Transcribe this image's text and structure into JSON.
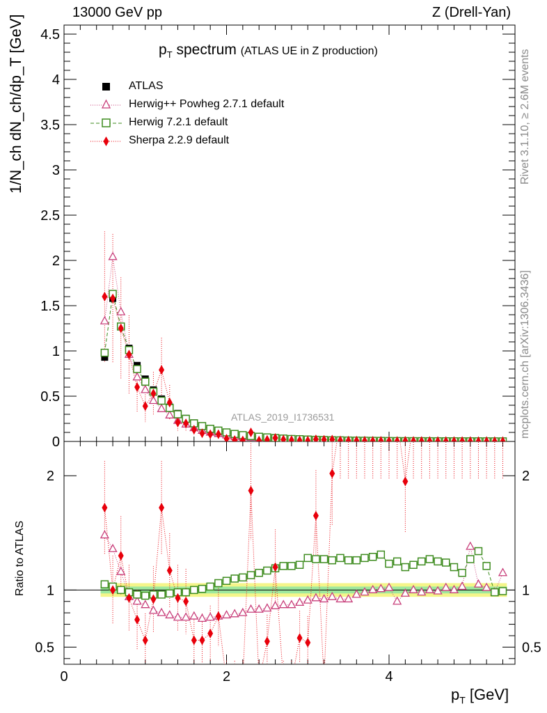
{
  "header": {
    "left": "13000 GeV pp",
    "right": "Z (Drell-Yan)"
  },
  "side": {
    "rivet": "Rivet 3.1.10, ≥ 2.6M events",
    "mcplots": "mcplots.cern.ch [arXiv:1306.3436]"
  },
  "watermark": "ATLAS_2019_I1736531",
  "chart_data": {
    "type": "scatter",
    "title_main": "p",
    "title_sub": "T",
    "title_rest": " spectrum",
    "title_note": "(ATLAS UE in Z production)",
    "xlabel": "p",
    "xlabel_sub": "T",
    "xlabel_unit": " [GeV]",
    "ylabel": "1/N_ch dN_ch/dp_T [GeV]",
    "ylabel_ratio": "Ratio to ATLAS",
    "xlim": [
      0,
      5.55
    ],
    "ylim": [
      0,
      4.6
    ],
    "ylim_ratio": [
      0.35,
      2.3
    ],
    "x_ticks": [
      "0",
      "2",
      "4"
    ],
    "y_ticks": [
      "0",
      "0.5",
      "1",
      "1.5",
      "2",
      "2.5",
      "3",
      "3.5",
      "4",
      "4.5"
    ],
    "ratio_ticks": [
      "0.5",
      "1",
      "2"
    ],
    "legend": [
      {
        "name": "ATLAS",
        "color": "#000000",
        "marker": "square"
      },
      {
        "name": "Herwig++ Powheg 2.7.1 default",
        "color": "#c83e7a",
        "marker": "triangle"
      },
      {
        "name": "Herwig 7.2.1 default",
        "color": "#3d8b1e",
        "marker": "open-square"
      },
      {
        "name": "Sherpa 2.2.9 default",
        "color": "#e8000b",
        "marker": "diamond"
      }
    ],
    "x": [
      0.5,
      0.6,
      0.7,
      0.8,
      0.9,
      1.0,
      1.1,
      1.2,
      1.3,
      1.4,
      1.5,
      1.6,
      1.7,
      1.8,
      1.9,
      2.0,
      2.1,
      2.2,
      2.3,
      2.4,
      2.5,
      2.6,
      2.7,
      2.8,
      2.9,
      3.0,
      3.1,
      3.2,
      3.3,
      3.4,
      3.5,
      3.6,
      3.7,
      3.8,
      3.9,
      4.0,
      4.1,
      4.2,
      4.3,
      4.4,
      4.5,
      4.6,
      4.7,
      4.8,
      4.9,
      5.0,
      5.1,
      5.2,
      5.3,
      5.4
    ],
    "series": [
      {
        "name": "ATLAS",
        "values": [
          0.93,
          1.58,
          1.27,
          1.03,
          0.84,
          0.69,
          0.57,
          0.47,
          0.38,
          0.31,
          0.255,
          0.205,
          0.165,
          0.135,
          0.11,
          0.09,
          0.075,
          0.062,
          0.052,
          0.044,
          0.037,
          0.031,
          0.026,
          0.022,
          0.019,
          0.016,
          0.014,
          0.012,
          0.01,
          0.009,
          0.008,
          0.007,
          0.006,
          0.0052,
          0.0045,
          0.004,
          0.0035,
          0.003,
          0.0027,
          0.0024,
          0.0021,
          0.0019,
          0.0017,
          0.0015,
          0.0013,
          0.0012,
          0.0011,
          0.001,
          0.0009,
          0.0008
        ]
      },
      {
        "name": "Herwig++ Powheg 2.7.1 default",
        "values": [
          1.33,
          2.04,
          1.43,
          0.96,
          0.71,
          0.57,
          0.45,
          0.36,
          0.29,
          0.23,
          0.19,
          0.15,
          0.12,
          0.1,
          0.085,
          0.07,
          0.058,
          0.05,
          0.043,
          0.036,
          0.031,
          0.027,
          0.022,
          0.019,
          0.017,
          0.014,
          0.013,
          0.011,
          0.009,
          0.008,
          0.007,
          0.006,
          0.0058,
          0.0051,
          0.0045,
          0.0038,
          0.0031,
          0.0029,
          0.0026,
          0.0023,
          0.0021,
          0.0018,
          0.0017,
          0.0015,
          0.0013,
          0.0016,
          0.0011,
          0.001,
          0.0009,
          0.0009
        ]
      },
      {
        "name": "Herwig 7.2.1 default",
        "values": [
          0.98,
          1.63,
          1.27,
          1.01,
          0.8,
          0.66,
          0.55,
          0.45,
          0.37,
          0.3,
          0.25,
          0.2,
          0.17,
          0.14,
          0.12,
          0.1,
          0.083,
          0.07,
          0.06,
          0.052,
          0.045,
          0.038,
          0.032,
          0.027,
          0.025,
          0.021,
          0.018,
          0.016,
          0.013,
          0.012,
          0.01,
          0.009,
          0.0078,
          0.0068,
          0.0061,
          0.0049,
          0.0043,
          0.0036,
          0.0033,
          0.003,
          0.0027,
          0.0023,
          0.0021,
          0.0018,
          0.0016,
          0.0015,
          0.0015,
          0.0012,
          0.001,
          0.0009
        ]
      },
      {
        "name": "Sherpa 2.2.9 default",
        "values": [
          1.6,
          1.58,
          1.25,
          0.96,
          0.6,
          0.39,
          0.53,
          0.79,
          0.43,
          0.21,
          0.2,
          0.13,
          0.09,
          0.08,
          0.08,
          0.03,
          0.015,
          0.011,
          0.1,
          0.01,
          0.018,
          0.038,
          0.02,
          0.013,
          0.011,
          0.009,
          0.023,
          0.018,
          0.02,
          0.01,
          0.008,
          0.008,
          0.006,
          0.005,
          0.0045,
          0.004,
          0.0033,
          0.006,
          0.0035,
          0.0029,
          0.0025,
          0.002,
          0.002,
          0.0018,
          0.0015,
          0.0012,
          0.0011,
          0.001,
          0.0009,
          0.0008
        ]
      }
    ],
    "ratio": {
      "band_inner": [
        0.97,
        1.03
      ],
      "band_outer": [
        0.94,
        1.06
      ],
      "series": [
        {
          "name": "Herwig++ Powheg 2.7.1 default",
          "values": [
            1.48,
            1.36,
            1.16,
            0.94,
            0.9,
            0.87,
            0.82,
            0.8,
            0.78,
            0.76,
            0.76,
            0.77,
            0.75,
            0.76,
            0.77,
            0.78,
            0.79,
            0.8,
            0.83,
            0.83,
            0.84,
            0.86,
            0.87,
            0.87,
            0.89,
            0.91,
            0.93,
            0.92,
            0.94,
            0.92,
            0.92,
            0.96,
            0.98,
            1.0,
            1.01,
            1.02,
            0.9,
            0.97,
            1.0,
            0.98,
            1.0,
            0.99,
            1.02,
            1.0,
            1.03,
            1.38,
            1.05,
            1.02,
            0.98,
            1.15
          ]
        },
        {
          "name": "Herwig 7.2.1 default",
          "values": [
            1.05,
            1.03,
            1.0,
            0.98,
            0.96,
            0.95,
            0.96,
            0.96,
            0.97,
            0.98,
            0.98,
            1.0,
            1.01,
            1.03,
            1.06,
            1.08,
            1.1,
            1.11,
            1.13,
            1.15,
            1.17,
            1.19,
            1.21,
            1.21,
            1.22,
            1.28,
            1.27,
            1.27,
            1.26,
            1.28,
            1.26,
            1.26,
            1.28,
            1.29,
            1.31,
            1.23,
            1.25,
            1.2,
            1.22,
            1.25,
            1.27,
            1.25,
            1.24,
            1.2,
            1.15,
            1.27,
            1.34,
            1.21,
            0.98,
            0.99
          ]
        },
        {
          "name": "Sherpa 2.2.9 default",
          "values": [
            1.72,
            1.0,
            1.3,
            0.93,
            0.74,
            0.56,
            0.92,
            1.72,
            1.17,
            0.93,
            0.9,
            0.56,
            0.56,
            0.62,
            0.77,
            0.2,
            0.2,
            0.2,
            1.87,
            0.2,
            0.55,
            1.2,
            0.2,
            0.2,
            0.58,
            0.54,
            1.65,
            0.2,
            2.02,
            2.5,
            2.5,
            2.5,
            2.5,
            2.5,
            2.5,
            2.5,
            2.5,
            1.95,
            2.5,
            2.5,
            2.5,
            2.5,
            2.5,
            2.5,
            2.5,
            2.5,
            2.5,
            2.5,
            2.5,
            2.5
          ]
        }
      ]
    }
  }
}
